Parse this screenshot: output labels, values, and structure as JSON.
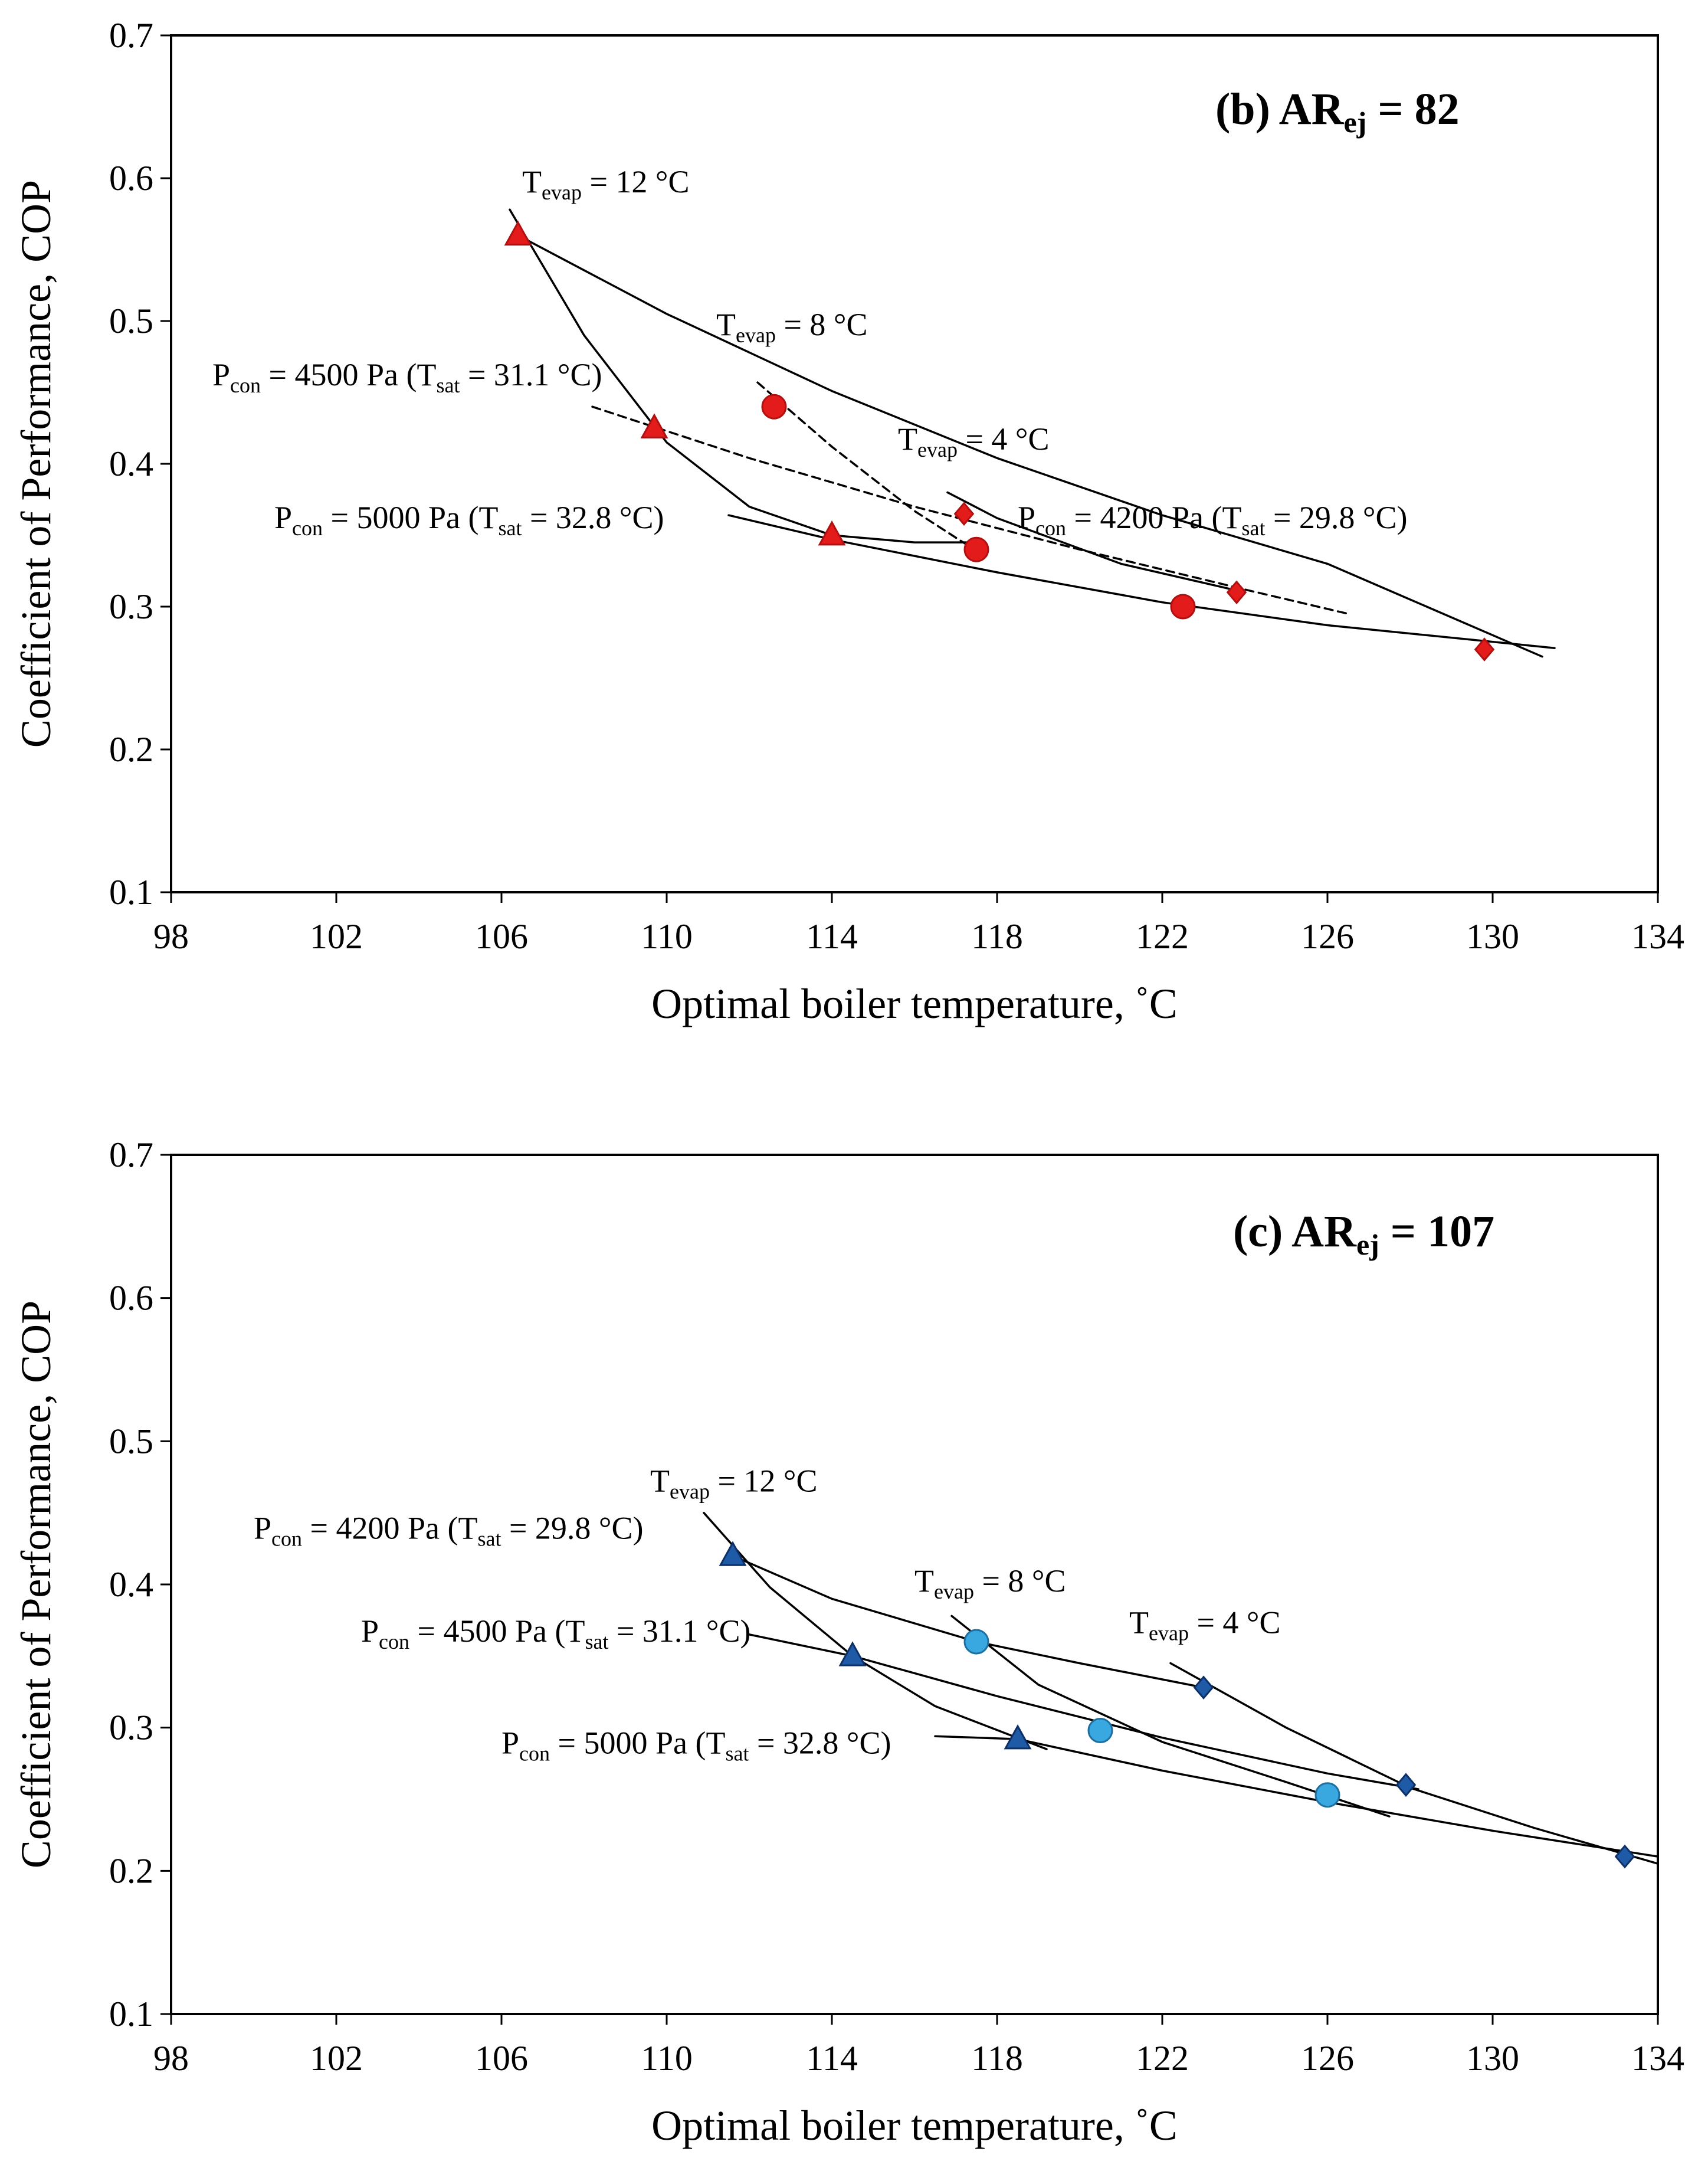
{
  "chart_data": [
    {
      "type": "scatter",
      "panel_label": "(b)",
      "title_main": "AR",
      "title_sub": "ej",
      "title_value": " = 82",
      "xlabel": "Optimal boiler temperature, ˚C",
      "ylabel": "Coefficient of Performance, COP",
      "xlim": [
        98,
        134
      ],
      "ylim": [
        0.1,
        0.7
      ],
      "xticks": [
        98,
        102,
        106,
        110,
        114,
        118,
        122,
        126,
        130,
        134
      ],
      "yticks": [
        0.1,
        0.2,
        0.3,
        0.4,
        0.5,
        0.6,
        0.7
      ],
      "tick_format": {
        "x": 0,
        "y": 1
      },
      "marker_color": "#e31b1b",
      "marker_stroke": "#b01010",
      "series": [
        {
          "name": "Tevap = 12 °C",
          "marker": "triangle",
          "x": [
            106.4,
            109.7,
            114.0
          ],
          "y": [
            0.56,
            0.425,
            0.35
          ]
        },
        {
          "name": "Tevap = 8 °C",
          "marker": "circle",
          "x": [
            112.6,
            117.5,
            122.5
          ],
          "y": [
            0.44,
            0.34,
            0.3
          ]
        },
        {
          "name": "Tevap = 4 °C",
          "marker": "diamond",
          "x": [
            117.2,
            123.8,
            129.8
          ],
          "y": [
            0.365,
            0.31,
            0.27
          ]
        }
      ],
      "curves": [
        {
          "name": "Tevap = 12 °C fit",
          "style": "solid",
          "x": [
            106.2,
            108.0,
            110.0,
            112.0,
            114.0,
            116.0,
            117.5
          ],
          "y": [
            0.578,
            0.49,
            0.415,
            0.37,
            0.35,
            0.345,
            0.345
          ]
        },
        {
          "name": "Tevap = 8 °C fit",
          "style": "dashed",
          "x": [
            112.2,
            114.0,
            116.0,
            117.5
          ],
          "y": [
            0.457,
            0.412,
            0.367,
            0.339
          ]
        },
        {
          "name": "Tevap = 4 °C fit",
          "style": "solid",
          "x": [
            116.8,
            118.0,
            121.0,
            124.0
          ],
          "y": [
            0.38,
            0.362,
            0.33,
            0.31
          ]
        },
        {
          "name": "Pcon = 4500 Pa fit",
          "style": "solid",
          "x": [
            106.4,
            110.0,
            114.0,
            118.0,
            122.0,
            126.0,
            131.2
          ],
          "y": [
            0.56,
            0.505,
            0.451,
            0.404,
            0.364,
            0.33,
            0.265
          ]
        },
        {
          "name": "Pcon = 4200 Pa fit",
          "style": "dashed",
          "x": [
            108.2,
            112.0,
            116.0,
            120.0,
            124.0,
            126.5
          ],
          "y": [
            0.44,
            0.404,
            0.37,
            0.34,
            0.312,
            0.295
          ]
        },
        {
          "name": "Pcon = 5000 Pa fit",
          "style": "solid",
          "x": [
            111.5,
            114.0,
            118.0,
            122.0,
            126.0,
            131.5
          ],
          "y": [
            0.364,
            0.347,
            0.324,
            0.303,
            0.287,
            0.271
          ]
        }
      ],
      "annotations": [
        {
          "main": "T",
          "sub": "evap",
          "rest": " = 12 °C",
          "x": 106.5,
          "y": 0.59
        },
        {
          "main": "T",
          "sub": "evap",
          "rest": " = 8 °C",
          "x": 111.2,
          "y": 0.49
        },
        {
          "main": "T",
          "sub": "evap",
          "rest": " = 4 °C",
          "x": 115.6,
          "y": 0.41
        },
        {
          "main": "P",
          "sub": "con",
          "rest": " = 4500 Pa (T",
          "sub2": "sat",
          "rest2": " = 31.1 °C)",
          "x": 99.0,
          "y": 0.455
        },
        {
          "main": "P",
          "sub": "con",
          "rest": " = 5000 Pa (T",
          "sub2": "sat",
          "rest2": " = 32.8 °C)",
          "x": 100.5,
          "y": 0.355
        },
        {
          "main": "P",
          "sub": "con",
          "rest": " = 4200 Pa (T",
          "sub2": "sat",
          "rest2": " = 29.8 °C)",
          "x": 118.5,
          "y": 0.355
        }
      ]
    },
    {
      "type": "scatter",
      "panel_label": "(c)",
      "title_main": "AR",
      "title_sub": "ej",
      "title_value": " = 107",
      "xlabel": "Optimal boiler temperature, ˚C",
      "ylabel": "Coefficient of Performance, COP",
      "xlim": [
        98,
        134
      ],
      "ylim": [
        0.1,
        0.7
      ],
      "xticks": [
        98,
        102,
        106,
        110,
        114,
        118,
        122,
        126,
        130,
        134
      ],
      "yticks": [
        0.1,
        0.2,
        0.3,
        0.4,
        0.5,
        0.6,
        0.7
      ],
      "tick_format": {
        "x": 0,
        "y": 1
      },
      "marker_color": "#1f5aa6",
      "marker_stroke": "#0c2f66",
      "circle_color": "#3aa8e0",
      "circle_stroke": "#1d6fa0",
      "series": [
        {
          "name": "Tevap = 12 °C",
          "marker": "triangle",
          "x": [
            111.6,
            114.5,
            118.5
          ],
          "y": [
            0.42,
            0.35,
            0.292
          ]
        },
        {
          "name": "Tevap = 8 °C",
          "marker": "circle",
          "x": [
            117.5,
            120.5,
            126.0
          ],
          "y": [
            0.36,
            0.298,
            0.253
          ]
        },
        {
          "name": "Tevap = 4 °C",
          "marker": "diamond",
          "x": [
            123.0,
            127.9,
            133.2
          ],
          "y": [
            0.328,
            0.26,
            0.21
          ]
        }
      ],
      "curves": [
        {
          "name": "Tevap = 12 °C fit",
          "style": "solid",
          "x": [
            110.9,
            112.5,
            114.5,
            116.5,
            119.2
          ],
          "y": [
            0.45,
            0.398,
            0.35,
            0.315,
            0.285
          ]
        },
        {
          "name": "Tevap = 8 °C fit",
          "style": "solid",
          "x": [
            116.9,
            119.0,
            122.0,
            125.0,
            127.5
          ],
          "y": [
            0.378,
            0.33,
            0.29,
            0.262,
            0.238
          ]
        },
        {
          "name": "Tevap = 4 °C fit",
          "style": "solid",
          "x": [
            122.2,
            125.0,
            128.0,
            131.0,
            134.0
          ],
          "y": [
            0.345,
            0.3,
            0.258,
            0.23,
            0.205
          ]
        },
        {
          "name": "Pcon = 4200 Pa fit",
          "style": "solid",
          "x": [
            111.6,
            114.0,
            117.5,
            120.0,
            123.0
          ],
          "y": [
            0.42,
            0.39,
            0.36,
            0.345,
            0.328
          ]
        },
        {
          "name": "Pcon = 4500 Pa fit",
          "style": "solid",
          "x": [
            112.0,
            114.5,
            118.0,
            122.0,
            126.0,
            128.2
          ],
          "y": [
            0.365,
            0.35,
            0.322,
            0.293,
            0.268,
            0.257
          ]
        },
        {
          "name": "Pcon = 5000 Pa fit",
          "style": "solid",
          "x": [
            116.5,
            118.5,
            122.0,
            126.0,
            130.0,
            134.0
          ],
          "y": [
            0.294,
            0.292,
            0.27,
            0.248,
            0.228,
            0.21
          ]
        }
      ],
      "annotations": [
        {
          "main": "T",
          "sub": "evap",
          "rest": " = 12 °C",
          "x": 109.6,
          "y": 0.465
        },
        {
          "main": "T",
          "sub": "evap",
          "rest": " = 8 °C",
          "x": 116.0,
          "y": 0.395
        },
        {
          "main": "T",
          "sub": "evap",
          "rest": " = 4 °C",
          "x": 121.2,
          "y": 0.366
        },
        {
          "main": "P",
          "sub": "con",
          "rest": " = 4200 Pa (T",
          "sub2": "sat",
          "rest2": " = 29.8 °C)",
          "x": 100.0,
          "y": 0.432
        },
        {
          "main": "P",
          "sub": "con",
          "rest": " = 4500 Pa (T",
          "sub2": "sat",
          "rest2": " = 31.1 °C)",
          "x": 102.6,
          "y": 0.36
        },
        {
          "main": "P",
          "sub": "con",
          "rest": " = 5000 Pa (T",
          "sub2": "sat",
          "rest2": " = 32.8 °C)",
          "x": 106.0,
          "y": 0.282
        }
      ]
    }
  ]
}
